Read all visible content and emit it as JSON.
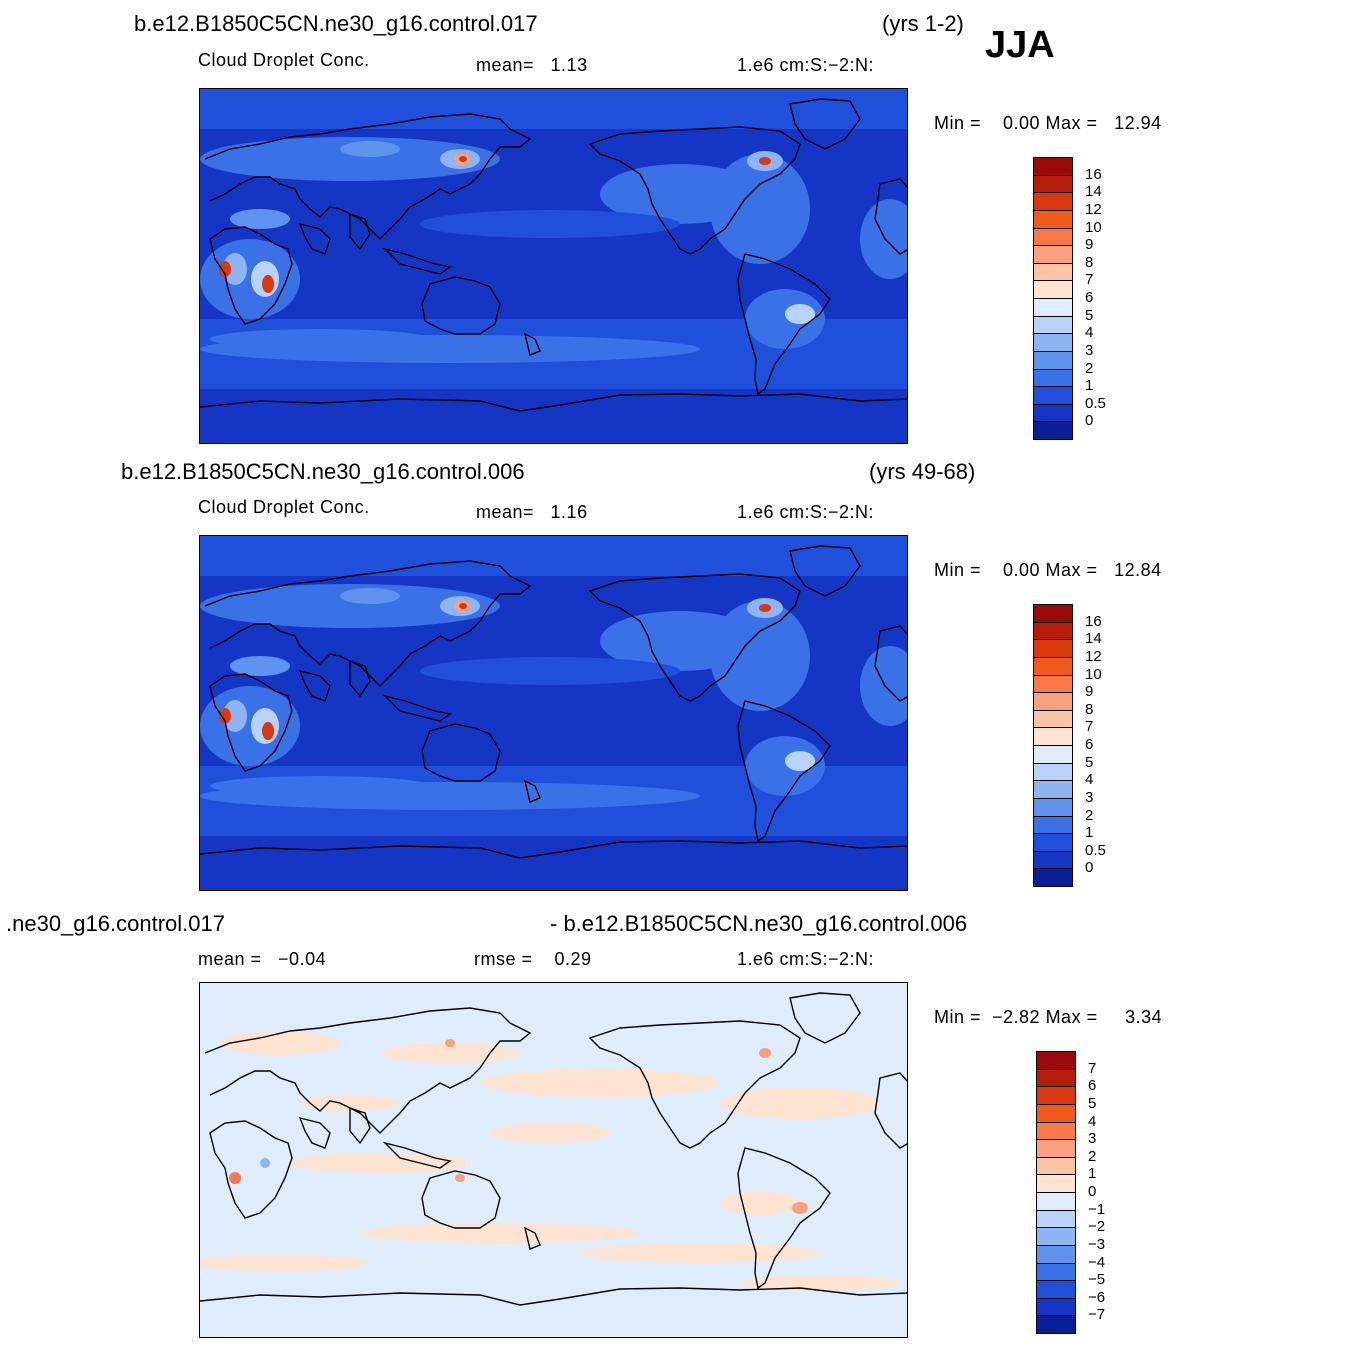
{
  "season": "JJA",
  "panels": [
    {
      "case": "b.e12.B1850C5CN.ne30_g16.control.017",
      "years": "(yrs 1-2)",
      "variable": "Cloud Droplet Conc.",
      "stat1": "mean=   1.13",
      "units": "1.e6 cm:S:−2:N:",
      "minmax": "Min =    0.00 Max =   12.94",
      "colorbar": {
        "labels": [
          "16",
          "14",
          "12",
          "10",
          "9",
          "8",
          "7",
          "6",
          "5",
          "4",
          "3",
          "2",
          "1",
          "0.5",
          "0"
        ],
        "colors": [
          "#9b0a0a",
          "#b51d0a",
          "#d9380f",
          "#f25a1c",
          "#f7794a",
          "#f9a07e",
          "#fcc3a5",
          "#fde4d2",
          "#dfecfb",
          "#b9d3f8",
          "#8db5f4",
          "#5f93ee",
          "#3a71e6",
          "#1f4fdb",
          "#1535c4",
          "#0a1f96"
        ]
      },
      "palette": "full"
    },
    {
      "case": "b.e12.B1850C5CN.ne30_g16.control.006",
      "years": "(yrs 49-68)",
      "variable": "Cloud Droplet Conc.",
      "stat1": "mean=   1.16",
      "units": "1.e6 cm:S:−2:N:",
      "minmax": "Min =    0.00 Max =   12.84",
      "colorbar": {
        "labels": [
          "16",
          "14",
          "12",
          "10",
          "9",
          "8",
          "7",
          "6",
          "5",
          "4",
          "3",
          "2",
          "1",
          "0.5",
          "0"
        ],
        "colors": [
          "#9b0a0a",
          "#b51d0a",
          "#d9380f",
          "#f25a1c",
          "#f7794a",
          "#f9a07e",
          "#fcc3a5",
          "#fde4d2",
          "#dfecfb",
          "#b9d3f8",
          "#8db5f4",
          "#5f93ee",
          "#3a71e6",
          "#1f4fdb",
          "#1535c4",
          "#0a1f96"
        ]
      },
      "palette": "full"
    },
    {
      "case_left": ".ne30_g16.control.017",
      "case_right": "- b.e12.B1850C5CN.ne30_g16.control.006",
      "stat1": "mean =   −0.04",
      "stat2": "rmse =    0.29",
      "units": "1.e6 cm:S:−2:N:",
      "minmax": "Min =  −2.82 Max =     3.34",
      "colorbar": {
        "labels": [
          "7",
          "6",
          "5",
          "4",
          "3",
          "2",
          "1",
          "0",
          "−1",
          "−2",
          "−3",
          "−4",
          "−5",
          "−6",
          "−7"
        ],
        "colors": [
          "#9b0a0a",
          "#b51d0a",
          "#d9380f",
          "#f25a1c",
          "#f7794a",
          "#f9a07e",
          "#fcc3a5",
          "#fde4d2",
          "#dfecfb",
          "#b9d3f8",
          "#8db5f4",
          "#5f93ee",
          "#3a71e6",
          "#1f4fdb",
          "#1535c4",
          "#0a1f96"
        ]
      },
      "palette": "diff"
    }
  ]
}
